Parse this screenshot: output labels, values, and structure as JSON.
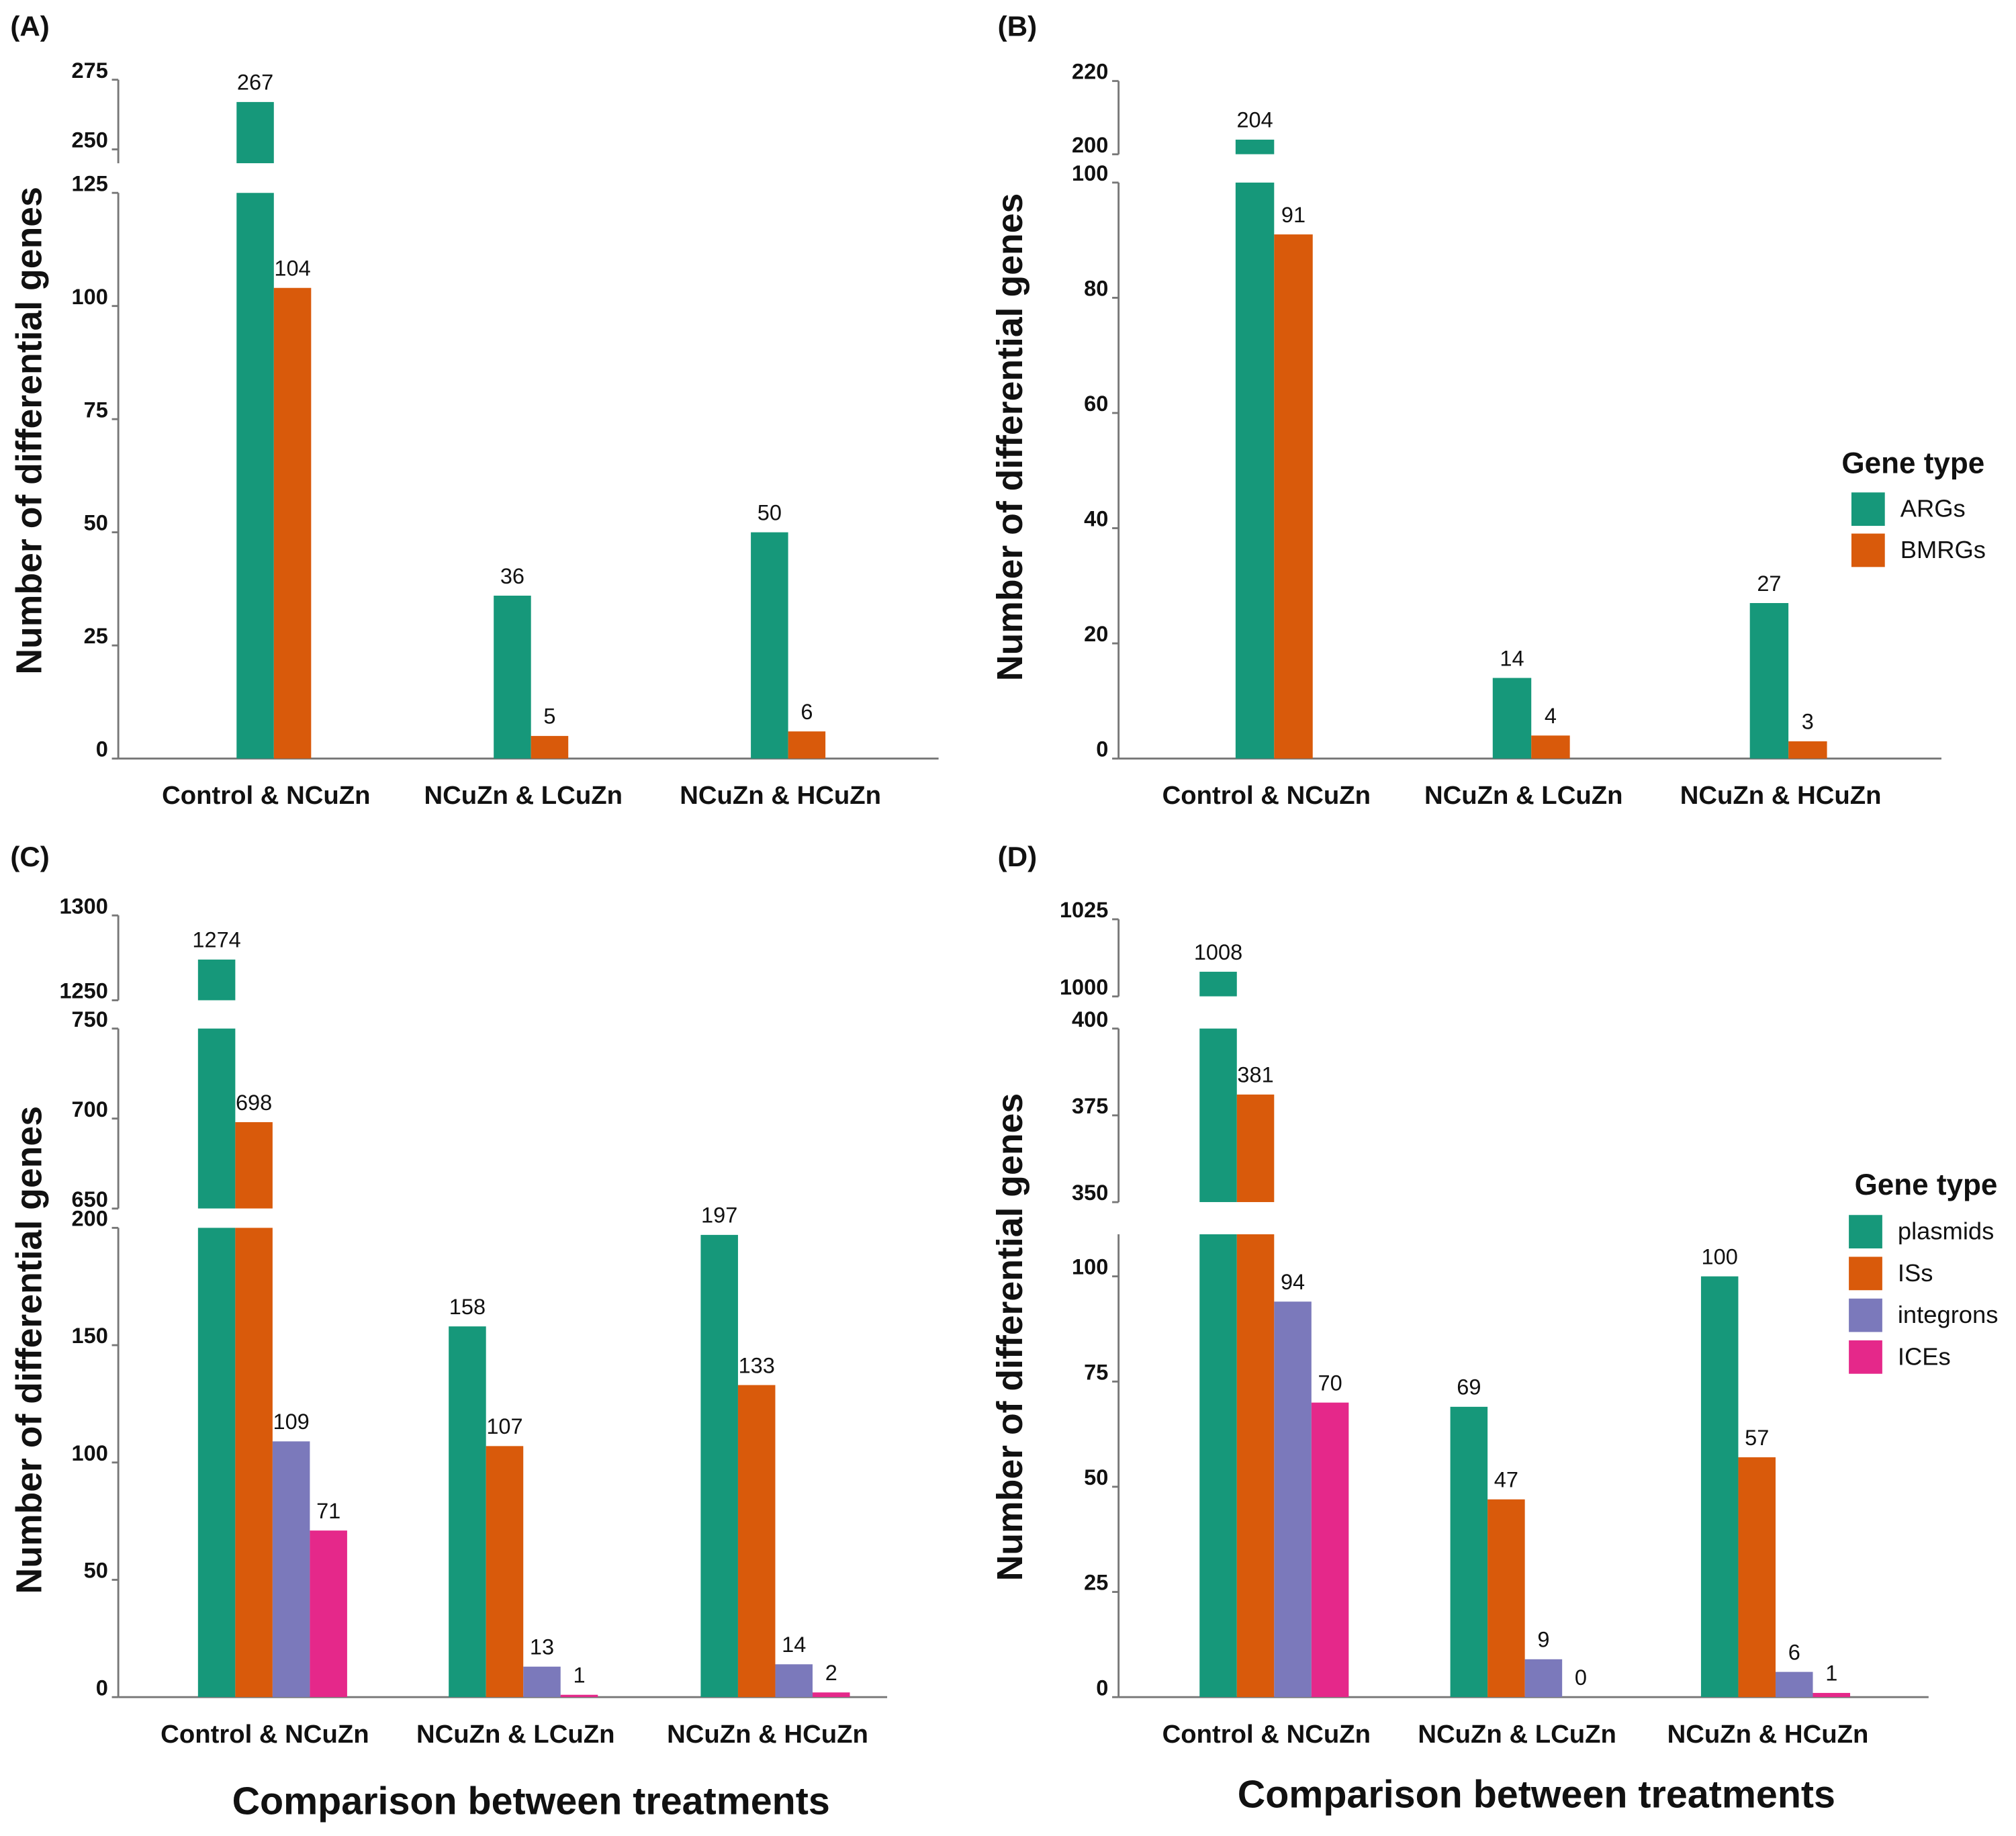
{
  "chart_data": [
    {
      "type": "bar",
      "panel": "(A)",
      "y_label": "Number of differential genes",
      "categories": [
        "Control & NCuZn",
        "NCuZn & LCuZn",
        "NCuZn & HCuZn"
      ],
      "series": [
        {
          "color": "#16987a",
          "values": [
            267,
            36,
            50
          ]
        },
        {
          "color": "#d95a0b",
          "values": [
            104,
            5,
            6
          ]
        }
      ],
      "axis_segments": [
        {
          "ylim": [
            0,
            125
          ],
          "yticks": [
            0,
            25,
            50,
            75,
            100,
            125
          ]
        },
        {
          "ylim": [
            245,
            275
          ],
          "yticks": [
            250,
            275
          ]
        }
      ]
    },
    {
      "type": "bar",
      "panel": "(B)",
      "y_label": "Number of differential genes",
      "legend_title": "Gene type",
      "categories": [
        "Control & NCuZn",
        "NCuZn & LCuZn",
        "NCuZn & HCuZn"
      ],
      "series": [
        {
          "name": "ARGs",
          "color": "#16987a",
          "values": [
            204,
            14,
            27
          ]
        },
        {
          "name": "BMRGs",
          "color": "#d95a0b",
          "values": [
            91,
            4,
            3
          ]
        }
      ],
      "axis_segments": [
        {
          "ylim": [
            0,
            100
          ],
          "yticks": [
            0,
            20,
            40,
            60,
            80,
            100
          ]
        },
        {
          "ylim": [
            200,
            220
          ],
          "yticks": [
            200,
            220
          ]
        }
      ]
    },
    {
      "type": "bar",
      "panel": "(C)",
      "y_label": "Number of differential genes",
      "x_label": "Comparison between treatments",
      "categories": [
        "Control & NCuZn",
        "NCuZn & LCuZn",
        "NCuZn & HCuZn"
      ],
      "series": [
        {
          "color": "#16987a",
          "values": [
            1274,
            158,
            197
          ]
        },
        {
          "color": "#d95a0b",
          "values": [
            698,
            107,
            133
          ]
        },
        {
          "color": "#7b79bb",
          "values": [
            109,
            13,
            14
          ]
        },
        {
          "color": "#e5288a",
          "values": [
            71,
            1,
            2
          ]
        }
      ],
      "axis_segments": [
        {
          "ylim": [
            0,
            200
          ],
          "yticks": [
            0,
            50,
            100,
            150,
            200
          ]
        },
        {
          "ylim": [
            650,
            750
          ],
          "yticks": [
            650,
            700,
            750
          ]
        },
        {
          "ylim": [
            1250,
            1300
          ],
          "yticks": [
            1250,
            1300
          ]
        }
      ]
    },
    {
      "type": "bar",
      "panel": "(D)",
      "y_label": "Number of differential genes",
      "x_label": "Comparison between treatments",
      "legend_title": "Gene type",
      "categories": [
        "Control & NCuZn",
        "NCuZn & LCuZn",
        "NCuZn & HCuZn"
      ],
      "series": [
        {
          "name": "plasmids",
          "color": "#16987a",
          "values": [
            1008,
            69,
            100
          ]
        },
        {
          "name": "ISs",
          "color": "#d95a0b",
          "values": [
            381,
            47,
            57
          ]
        },
        {
          "name": "integrons",
          "color": "#7b79bb",
          "values": [
            94,
            9,
            6
          ]
        },
        {
          "name": "ICEs",
          "color": "#e5288a",
          "values": [
            70,
            0,
            1
          ]
        }
      ],
      "axis_segments": [
        {
          "ylim": [
            0,
            110
          ],
          "yticks": [
            0,
            25,
            50,
            75,
            100
          ]
        },
        {
          "ylim": [
            350,
            400
          ],
          "yticks": [
            350,
            375,
            400
          ]
        },
        {
          "ylim": [
            1000,
            1025
          ],
          "yticks": [
            1000,
            1025
          ]
        }
      ]
    }
  ]
}
